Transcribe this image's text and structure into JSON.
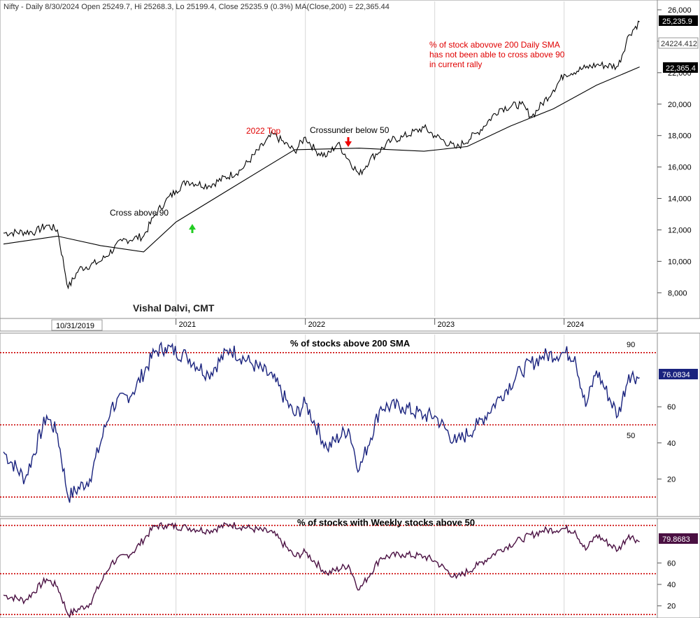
{
  "header": "Nifty - Daily 8/30/2024 Open 25249.7, Hi 25268.3, Lo 25199.4, Close 25235.9 (0.3%) MA(Close,200) = 22,365.44",
  "watermark": "Vishal Dalvi, CMT",
  "cursor_date": "10/31/2019",
  "colors": {
    "price": "#000000",
    "ma": "#000000",
    "pct200": "#1a237e",
    "pct50w": "#4a1042",
    "ref_line": "#cc0000",
    "annotation_red": "#e00000",
    "up_arrow": "#22cc22",
    "down_arrow": "#ee0000",
    "grid": "#d7d7d7",
    "pane_border": "#8c8c8c"
  },
  "annotations": {
    "cross_above_90": "Cross above 90",
    "top_2022": "2022 Top",
    "crossunder_50": "Crossunder below 50",
    "note_lines": [
      "% of stock abovove 200 Daily SMA",
      "has not been able to cross above 90",
      "in current rally"
    ]
  },
  "chart_data": [
    {
      "type": "line",
      "title": "Nifty - Daily",
      "x_ticks": [
        "2021",
        "2022",
        "2023",
        "2024"
      ],
      "y_ticks": [
        "8,000",
        "10,000",
        "12,000",
        "14,000",
        "16,000",
        "18,000",
        "20,000",
        "22,000",
        "24,000",
        "26,000"
      ],
      "ylim": [
        6500,
        26400
      ],
      "series": [
        {
          "name": "Nifty",
          "x": [
            "2019-09",
            "2019-12",
            "2020-01",
            "2020-02",
            "2020-03",
            "2020-04",
            "2020-06",
            "2020-08",
            "2020-10",
            "2020-11",
            "2020-12",
            "2021-01",
            "2021-02",
            "2021-04",
            "2021-07",
            "2021-10",
            "2021-12",
            "2022-01",
            "2022-02",
            "2022-03",
            "2022-04",
            "2022-06",
            "2022-07",
            "2022-09",
            "2022-10",
            "2022-12",
            "2023-01",
            "2023-03",
            "2023-05",
            "2023-07",
            "2023-09",
            "2023-10",
            "2023-12",
            "2024-01",
            "2024-03",
            "2024-04",
            "2024-06",
            "2024-07",
            "2024-08"
          ],
          "values": [
            11800,
            11900,
            12300,
            12000,
            8300,
            9500,
            10000,
            11300,
            11600,
            12900,
            13800,
            14500,
            15100,
            14800,
            15800,
            18100,
            17000,
            17900,
            17000,
            16700,
            17500,
            15500,
            16500,
            17700,
            17900,
            18500,
            18000,
            17200,
            18200,
            19700,
            20000,
            19200,
            20900,
            21900,
            22300,
            22500,
            22400,
            24400,
            25236
          ]
        },
        {
          "name": "MA(Close,200)",
          "x": [
            "2019-09",
            "2020-02",
            "2020-06",
            "2020-10",
            "2021-01",
            "2021-06",
            "2021-12",
            "2022-06",
            "2022-12",
            "2023-04",
            "2023-08",
            "2023-12",
            "2024-04",
            "2024-08"
          ],
          "values": [
            11100,
            11600,
            11000,
            10600,
            12500,
            14600,
            17100,
            17200,
            17000,
            17300,
            18600,
            19700,
            21200,
            22365
          ]
        }
      ],
      "last_value_tags": [
        "25,235.9",
        "24224.412",
        "22,365.4"
      ]
    },
    {
      "type": "line",
      "title": "% of stocks above 200 SMA",
      "y_ticks": [
        "20",
        "40",
        "60"
      ],
      "ylim": [
        0,
        100
      ],
      "ref_lines": [
        {
          "value": 90,
          "label": "90"
        },
        {
          "value": 50,
          "label": "50"
        },
        {
          "value": 10,
          "label": ""
        }
      ],
      "series": [
        {
          "name": "% of stocks above 200 SMA",
          "x": [
            "2019-09",
            "2019-11",
            "2020-01",
            "2020-02",
            "2020-03",
            "2020-05",
            "2020-07",
            "2020-09",
            "2020-11",
            "2020-12",
            "2021-02",
            "2021-04",
            "2021-06",
            "2021-08",
            "2021-10",
            "2021-12",
            "2022-01",
            "2022-03",
            "2022-05",
            "2022-06",
            "2022-08",
            "2022-10",
            "2022-12",
            "2023-01",
            "2023-03",
            "2023-05",
            "2023-07",
            "2023-09",
            "2023-11",
            "2024-01",
            "2024-02",
            "2024-03",
            "2024-04",
            "2024-06",
            "2024-07",
            "2024-08"
          ],
          "values": [
            35,
            20,
            55,
            45,
            10,
            20,
            60,
            68,
            90,
            93,
            88,
            78,
            92,
            84,
            76,
            55,
            62,
            37,
            48,
            25,
            60,
            60,
            55,
            55,
            40,
            50,
            65,
            80,
            88,
            90,
            88,
            60,
            80,
            55,
            78,
            76.08
          ]
        }
      ],
      "last_value_tag": "76.0834"
    },
    {
      "type": "line",
      "title": "% of stocks with Weekly stocks above 50",
      "y_ticks": [
        "20",
        "40",
        "60"
      ],
      "ylim": [
        10,
        100
      ],
      "ref_lines": [
        {
          "value": 95,
          "label": ""
        },
        {
          "value": 50,
          "label": ""
        },
        {
          "value": 12,
          "label": ""
        }
      ],
      "series": [
        {
          "name": "% of stocks with Weekly stocks above 50",
          "x": [
            "2019-09",
            "2019-11",
            "2020-01",
            "2020-02",
            "2020-03",
            "2020-05",
            "2020-07",
            "2020-09",
            "2020-11",
            "2020-12",
            "2021-02",
            "2021-04",
            "2021-06",
            "2021-08",
            "2021-10",
            "2021-12",
            "2022-01",
            "2022-03",
            "2022-05",
            "2022-06",
            "2022-08",
            "2022-10",
            "2022-12",
            "2023-01",
            "2023-03",
            "2023-05",
            "2023-07",
            "2023-09",
            "2023-11",
            "2024-01",
            "2024-02",
            "2024-03",
            "2024-04",
            "2024-06",
            "2024-07",
            "2024-08"
          ],
          "values": [
            30,
            25,
            45,
            38,
            12,
            22,
            60,
            70,
            94,
            95,
            93,
            90,
            96,
            92,
            88,
            66,
            70,
            50,
            58,
            35,
            65,
            68,
            66,
            62,
            46,
            58,
            72,
            82,
            90,
            92,
            90,
            72,
            86,
            72,
            86,
            79.87
          ]
        }
      ],
      "last_value_tag": "79.8683"
    }
  ]
}
